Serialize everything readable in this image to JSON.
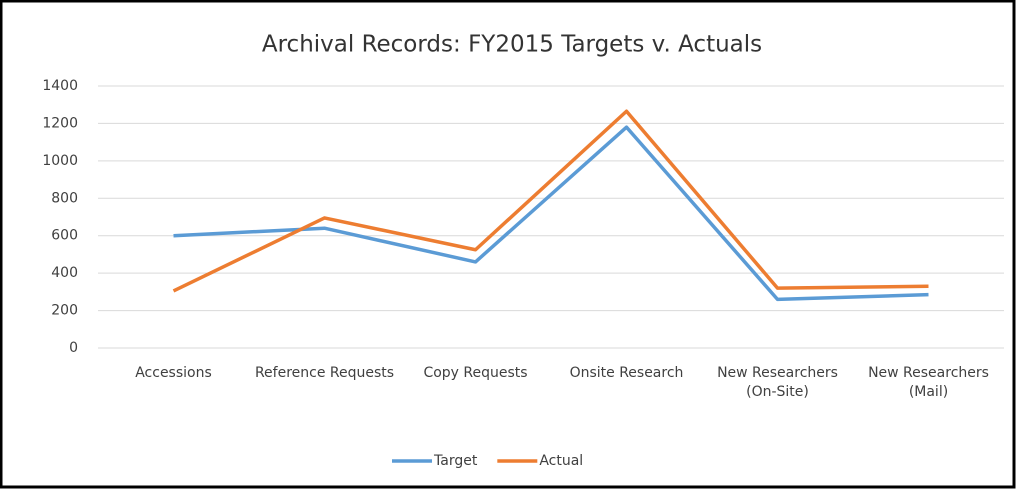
{
  "chart_data": {
    "type": "line",
    "title": "Archival Records: FY2015 Targets v. Actuals",
    "categories": [
      "Accessions",
      "Reference Requests",
      "Copy Requests",
      "Onsite Research",
      "New Researchers (On-Site)",
      "New Researchers (Mail)"
    ],
    "series": [
      {
        "name": "Target",
        "color": "#5b9bd5",
        "values": [
          600,
          640,
          460,
          1180,
          260,
          285
        ]
      },
      {
        "name": "Actual",
        "color": "#ed7d31",
        "values": [
          305,
          695,
          525,
          1265,
          320,
          330
        ]
      }
    ],
    "ylim": [
      0,
      1400
    ],
    "yticks": [
      0,
      200,
      400,
      600,
      800,
      1000,
      1200,
      1400
    ],
    "grid": true,
    "legend": "bottom"
  }
}
